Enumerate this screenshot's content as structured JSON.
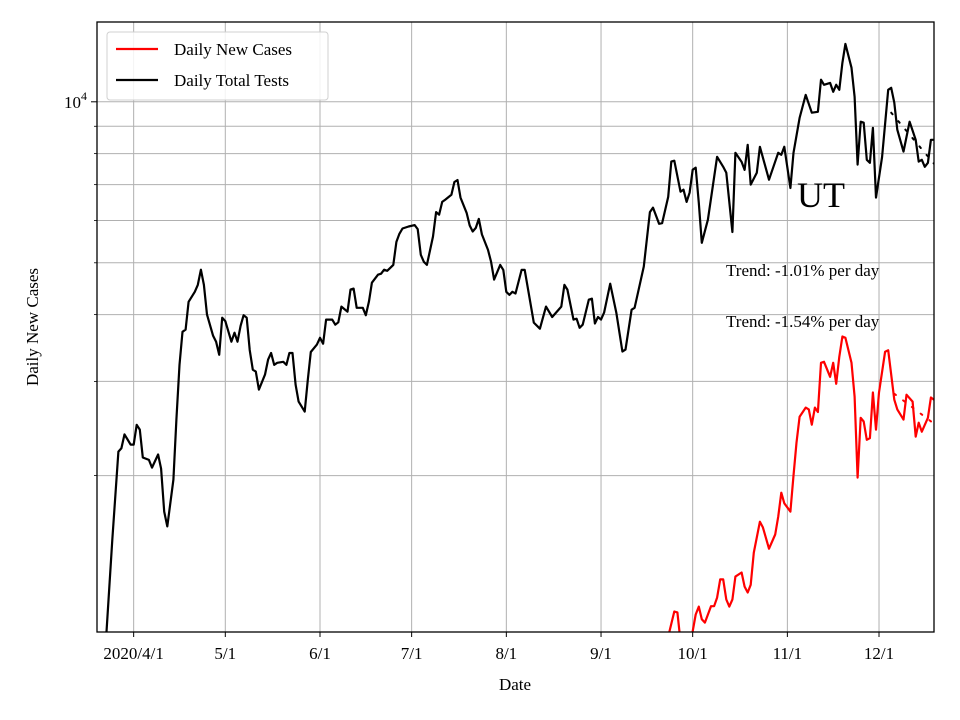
{
  "chart_data": {
    "type": "line",
    "title": "",
    "xlabel": "Date",
    "ylabel": "Daily New Cases",
    "x_scale": "date",
    "y_scale": "log",
    "xlim": [
      "2020-03-20",
      "2020-12-19"
    ],
    "ylim": [
      1020,
      14100
    ],
    "grid": true,
    "legend_position": "top-left",
    "x_ticks": [
      {
        "date": "2020-04-01",
        "label": "2020/4/1"
      },
      {
        "date": "2020-05-01",
        "label": "5/1"
      },
      {
        "date": "2020-06-01",
        "label": "6/1"
      },
      {
        "date": "2020-07-01",
        "label": "7/1"
      },
      {
        "date": "2020-08-01",
        "label": "8/1"
      },
      {
        "date": "2020-09-01",
        "label": "9/1"
      },
      {
        "date": "2020-10-01",
        "label": "10/1"
      },
      {
        "date": "2020-11-01",
        "label": "11/1"
      },
      {
        "date": "2020-12-01",
        "label": "12/1"
      }
    ],
    "y_major_ticks": [
      {
        "value": 10000,
        "base": "10",
        "exponent": "4"
      }
    ],
    "y_minor_ticks": [
      2000,
      3000,
      4000,
      5000,
      6000,
      7000,
      8000,
      9000
    ],
    "series": [
      {
        "name": "Daily New Cases",
        "color": "#ff0000",
        "dates": [
          "2020-09-23",
          "2020-09-25",
          "2020-09-26",
          "2020-09-27",
          "2020-09-28",
          "2020-09-30",
          "2020-10-02",
          "2020-10-03",
          "2020-10-04",
          "2020-10-05",
          "2020-10-07",
          "2020-10-08",
          "2020-10-09",
          "2020-10-10",
          "2020-10-11",
          "2020-10-12",
          "2020-10-13",
          "2020-10-14",
          "2020-10-15",
          "2020-10-17",
          "2020-10-18",
          "2020-10-19",
          "2020-10-20",
          "2020-10-21",
          "2020-10-23",
          "2020-10-24",
          "2020-10-26",
          "2020-10-28",
          "2020-10-29",
          "2020-10-30",
          "2020-10-31",
          "2020-11-02",
          "2020-11-03",
          "2020-11-04",
          "2020-11-05",
          "2020-11-07",
          "2020-11-08",
          "2020-11-09",
          "2020-11-10",
          "2020-11-11",
          "2020-11-12",
          "2020-11-13",
          "2020-11-15",
          "2020-11-16",
          "2020-11-17",
          "2020-11-18",
          "2020-11-19",
          "2020-11-20",
          "2020-11-22",
          "2020-11-23",
          "2020-11-24",
          "2020-11-25",
          "2020-11-26",
          "2020-11-27",
          "2020-11-28",
          "2020-11-29",
          "2020-11-30",
          "2020-12-01",
          "2020-12-03",
          "2020-12-04",
          "2020-12-06",
          "2020-12-07",
          "2020-12-09",
          "2020-12-10",
          "2020-12-12",
          "2020-12-13",
          "2020-12-14",
          "2020-12-15",
          "2020-12-17",
          "2020-12-18",
          "2020-12-19"
        ],
        "values": [
          1000,
          1114,
          1110,
          980,
          950,
          950,
          1100,
          1138,
          1078,
          1062,
          1140,
          1140,
          1183,
          1279,
          1279,
          1173,
          1138,
          1173,
          1295,
          1318,
          1240,
          1209,
          1250,
          1436,
          1640,
          1600,
          1460,
          1552,
          1675,
          1858,
          1775,
          1713,
          2000,
          2305,
          2577,
          2680,
          2660,
          2490,
          2680,
          2630,
          3250,
          3265,
          3060,
          3250,
          2970,
          3335,
          3640,
          3620,
          3250,
          2810,
          1983,
          2565,
          2525,
          2333,
          2350,
          2860,
          2438,
          2860,
          3410,
          3430,
          2773,
          2660,
          2545,
          2833,
          2750,
          2366,
          2512,
          2416,
          2565,
          2800,
          2773
        ]
      },
      {
        "name": "Daily Total Tests",
        "color": "#000000",
        "dates": [
          "2020-03-23",
          "2020-03-25",
          "2020-03-27",
          "2020-03-28",
          "2020-03-29",
          "2020-03-31",
          "2020-04-01",
          "2020-04-02",
          "2020-04-03",
          "2020-04-04",
          "2020-04-06",
          "2020-04-07",
          "2020-04-09",
          "2020-04-10",
          "2020-04-11",
          "2020-04-12",
          "2020-04-14",
          "2020-04-15",
          "2020-04-16",
          "2020-04-17",
          "2020-04-18",
          "2020-04-19",
          "2020-04-21",
          "2020-04-22",
          "2020-04-23",
          "2020-04-24",
          "2020-04-25",
          "2020-04-27",
          "2020-04-28",
          "2020-04-29",
          "2020-04-30",
          "2020-05-01",
          "2020-05-03",
          "2020-05-04",
          "2020-05-05",
          "2020-05-06",
          "2020-05-07",
          "2020-05-08",
          "2020-05-09",
          "2020-05-10",
          "2020-05-11",
          "2020-05-12",
          "2020-05-14",
          "2020-05-15",
          "2020-05-16",
          "2020-05-17",
          "2020-05-18",
          "2020-05-20",
          "2020-05-21",
          "2020-05-22",
          "2020-05-23",
          "2020-05-24",
          "2020-05-25",
          "2020-05-27",
          "2020-05-28",
          "2020-05-29",
          "2020-05-31",
          "2020-06-01",
          "2020-06-02",
          "2020-06-03",
          "2020-06-05",
          "2020-06-06",
          "2020-06-07",
          "2020-06-08",
          "2020-06-10",
          "2020-06-11",
          "2020-06-12",
          "2020-06-13",
          "2020-06-15",
          "2020-06-16",
          "2020-06-17",
          "2020-06-18",
          "2020-06-20",
          "2020-06-21",
          "2020-06-22",
          "2020-06-23",
          "2020-06-25",
          "2020-06-26",
          "2020-06-27",
          "2020-06-28",
          "2020-06-30",
          "2020-07-02",
          "2020-07-03",
          "2020-07-04",
          "2020-07-05",
          "2020-07-06",
          "2020-07-08",
          "2020-07-09",
          "2020-07-10",
          "2020-07-11",
          "2020-07-12",
          "2020-07-14",
          "2020-07-15",
          "2020-07-16",
          "2020-07-17",
          "2020-07-19",
          "2020-07-20",
          "2020-07-21",
          "2020-07-22",
          "2020-07-23",
          "2020-07-24",
          "2020-07-26",
          "2020-07-27",
          "2020-07-28",
          "2020-07-30",
          "2020-07-31",
          "2020-08-01",
          "2020-08-02",
          "2020-08-03",
          "2020-08-04",
          "2020-08-06",
          "2020-08-07",
          "2020-08-10",
          "2020-08-12",
          "2020-08-14",
          "2020-08-16",
          "2020-08-19",
          "2020-08-20",
          "2020-08-21",
          "2020-08-23",
          "2020-08-24",
          "2020-08-25",
          "2020-08-26",
          "2020-08-28",
          "2020-08-29",
          "2020-08-30",
          "2020-08-31",
          "2020-09-01",
          "2020-09-02",
          "2020-09-04",
          "2020-09-06",
          "2020-09-08",
          "2020-09-09",
          "2020-09-11",
          "2020-09-12",
          "2020-09-15",
          "2020-09-17",
          "2020-09-18",
          "2020-09-20",
          "2020-09-21",
          "2020-09-23",
          "2020-09-24",
          "2020-09-25",
          "2020-09-27",
          "2020-09-28",
          "2020-09-29",
          "2020-09-30",
          "2020-10-01",
          "2020-10-02",
          "2020-10-03",
          "2020-10-04",
          "2020-10-06",
          "2020-10-09",
          "2020-10-11",
          "2020-10-12",
          "2020-10-14",
          "2020-10-15",
          "2020-10-17",
          "2020-10-18",
          "2020-10-19",
          "2020-10-20",
          "2020-10-22",
          "2020-10-23",
          "2020-10-26",
          "2020-10-29",
          "2020-10-30",
          "2020-10-31",
          "2020-11-02",
          "2020-11-03",
          "2020-11-05",
          "2020-11-07",
          "2020-11-09",
          "2020-11-11",
          "2020-11-12",
          "2020-11-13",
          "2020-11-15",
          "2020-11-16",
          "2020-11-17",
          "2020-11-18",
          "2020-11-19",
          "2020-11-20",
          "2020-11-22",
          "2020-11-23",
          "2020-11-24",
          "2020-11-25",
          "2020-11-26",
          "2020-11-27",
          "2020-11-28",
          "2020-11-29",
          "2020-11-30",
          "2020-12-02",
          "2020-12-04",
          "2020-12-05",
          "2020-12-06",
          "2020-12-07",
          "2020-12-09",
          "2020-12-11",
          "2020-12-13",
          "2020-12-14",
          "2020-12-15",
          "2020-12-16",
          "2020-12-17",
          "2020-12-18",
          "2020-12-19"
        ],
        "values": [
          1000,
          1517,
          2218,
          2250,
          2388,
          2286,
          2286,
          2489,
          2438,
          2162,
          2140,
          2070,
          2190,
          2060,
          1713,
          1607,
          1965,
          2545,
          3222,
          3715,
          3750,
          4227,
          4413,
          4546,
          4853,
          4546,
          4000,
          3652,
          3560,
          3365,
          3948,
          3890,
          3560,
          3700,
          3560,
          3812,
          3990,
          3948,
          3437,
          3155,
          3130,
          2897,
          3090,
          3296,
          3390,
          3222,
          3250,
          3265,
          3222,
          3390,
          3390,
          2958,
          2750,
          2635,
          3020,
          3405,
          3515,
          3620,
          3530,
          3915,
          3915,
          3830,
          3870,
          4140,
          4050,
          4455,
          4475,
          4120,
          4120,
          3990,
          4227,
          4590,
          4750,
          4770,
          4853,
          4830,
          4955,
          5470,
          5665,
          5795,
          5845,
          5880,
          5780,
          5175,
          5020,
          4955,
          5600,
          6220,
          6150,
          6500,
          6560,
          6700,
          7080,
          7140,
          6620,
          6200,
          5870,
          5720,
          5810,
          6040,
          5650,
          5285,
          5020,
          4650,
          4955,
          4850,
          4413,
          4355,
          4413,
          4380,
          4850,
          4850,
          3865,
          3765,
          4140,
          3960,
          4140,
          4546,
          4455,
          3915,
          3930,
          3780,
          3830,
          4266,
          4285,
          3850,
          3960,
          3915,
          4035,
          4570,
          4035,
          3412,
          3440,
          4085,
          4120,
          4920,
          6220,
          6340,
          5915,
          5930,
          6640,
          7730,
          7760,
          6790,
          6850,
          6500,
          6760,
          7465,
          7530,
          6475,
          5450,
          6020,
          7890,
          7560,
          7370,
          5710,
          8030,
          7720,
          7460,
          8310,
          7000,
          7370,
          8240,
          7150,
          8030,
          7960,
          8240,
          6900,
          8030,
          9330,
          10300,
          9540,
          9580,
          11000,
          10760,
          10850,
          10440,
          10760,
          10530,
          11830,
          12830,
          11580,
          10220,
          7630,
          9180,
          9140,
          7790,
          7690,
          8940,
          6620,
          7890,
          10530,
          10620,
          9960,
          8870,
          8070,
          9180,
          8490,
          7730,
          7790,
          7560,
          7690,
          8490,
          8490
        ]
      }
    ],
    "trend_lines": [
      {
        "color": "#ff0000",
        "style": "dotted",
        "start": {
          "date": "2020-12-06",
          "value": 2845
        },
        "end": {
          "date": "2020-12-19",
          "value": 2501
        }
      },
      {
        "color": "#000000",
        "style": "dotted",
        "start": {
          "date": "2020-12-05",
          "value": 9540
        },
        "end": {
          "date": "2020-12-19",
          "value": 7660
        }
      }
    ],
    "annotations": {
      "state": "UT",
      "trend_1": "Trend: -1.01% per day",
      "trend_2": "Trend: -1.54% per day"
    }
  }
}
